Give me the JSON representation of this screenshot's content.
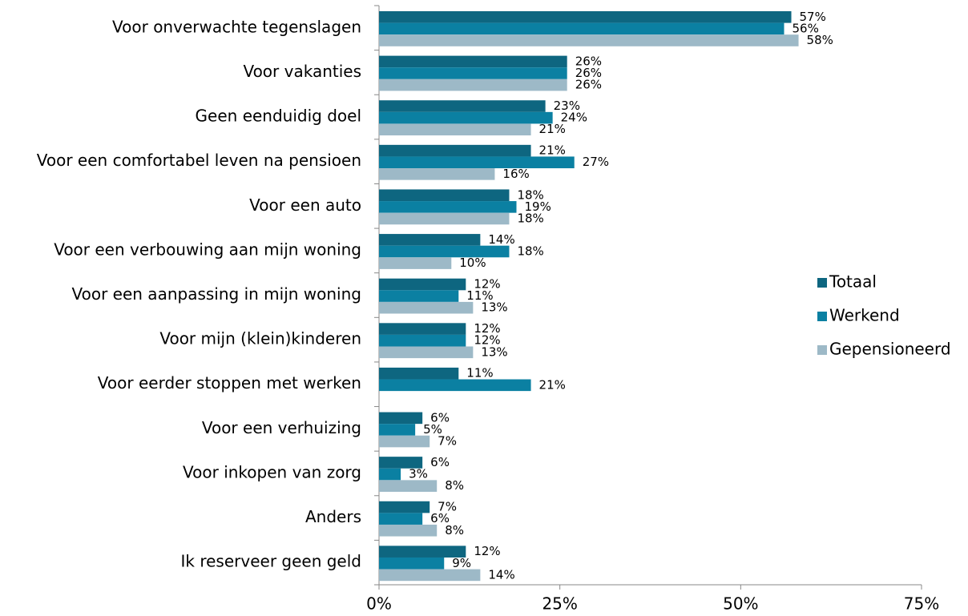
{
  "chart_data": {
    "type": "barh",
    "categories": [
      "Voor onverwachte tegenslagen",
      "Voor vakanties",
      "Geen eenduidig doel",
      "Voor een comfortabel leven na pensioen",
      "Voor een auto",
      "Voor een verbouwing aan mijn woning",
      "Voor een aanpassing in mijn woning",
      "Voor mijn (klein)kinderen",
      "Voor eerder stoppen met werken",
      "Voor een verhuizing",
      "Voor inkopen van zorg",
      "Anders",
      "Ik reserveer geen geld"
    ],
    "series": [
      {
        "name": "Totaal",
        "color": "#0e6680",
        "values": [
          57,
          26,
          23,
          21,
          18,
          14,
          12,
          12,
          11,
          6,
          6,
          7,
          12
        ],
        "value_labels": [
          "57%",
          "26%",
          "23%",
          "21%",
          "18%",
          "14%",
          "12%",
          "12%",
          "11%",
          "6%",
          "6%",
          "7%",
          "12%"
        ]
      },
      {
        "name": "Werkend",
        "color": "#0b80a2",
        "values": [
          56,
          26,
          24,
          27,
          19,
          18,
          11,
          12,
          21,
          5,
          3,
          6,
          9
        ],
        "value_labels": [
          "56%",
          "26%",
          "24%",
          "27%",
          "19%",
          "18%",
          "11%",
          "12%",
          "21%",
          "5%",
          "3%",
          "6%",
          "9%"
        ]
      },
      {
        "name": "Gepensioneerd",
        "color": "#9db9c7",
        "values": [
          58,
          26,
          21,
          16,
          18,
          10,
          13,
          13,
          null,
          7,
          8,
          8,
          14
        ],
        "value_labels": [
          "58%",
          "26%",
          "21%",
          "16%",
          "18%",
          "10%",
          "13%",
          "13%",
          null,
          "7%",
          "8%",
          "8%",
          "14%"
        ]
      }
    ],
    "xlim": [
      0,
      75
    ],
    "xticks": [
      {
        "value": 0,
        "label": "0%"
      },
      {
        "value": 25,
        "label": "25%"
      },
      {
        "value": 50,
        "label": "50%"
      },
      {
        "value": 75,
        "label": "75%"
      }
    ],
    "grid": false,
    "legend": "right"
  }
}
